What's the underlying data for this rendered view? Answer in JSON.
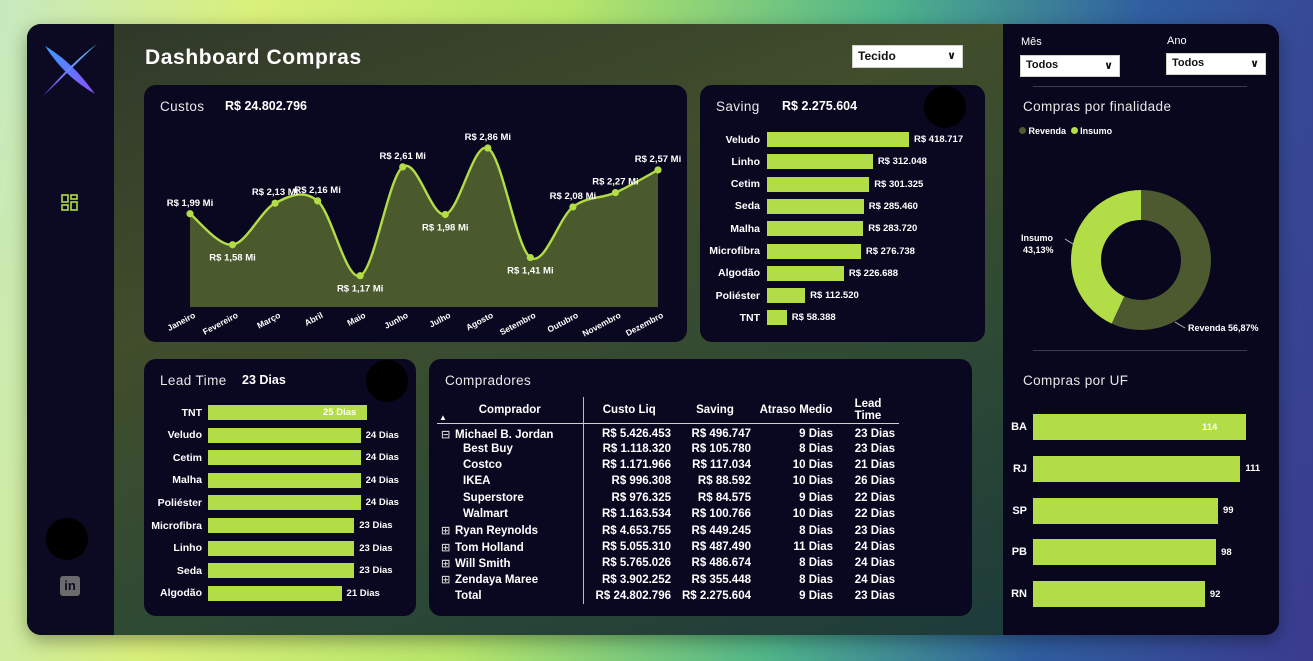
{
  "app": {
    "title": "Dashboard Compras"
  },
  "filters": {
    "tecido": "Tecido",
    "mes_label": "Mês",
    "mes_value": "Todos",
    "ano_label": "Ano",
    "ano_value": "Todos"
  },
  "custos": {
    "title": "Custos",
    "total": "R$ 24.802.796",
    "chart_data": {
      "type": "area",
      "categories": [
        "Janeiro",
        "Fevereiro",
        "Março",
        "Abril",
        "Maio",
        "Junho",
        "Julho",
        "Agosto",
        "Setembro",
        "Outubro",
        "Novembro",
        "Dezembro"
      ],
      "values": [
        1.99,
        1.58,
        2.13,
        2.16,
        1.17,
        2.61,
        1.98,
        2.86,
        1.41,
        2.08,
        2.27,
        2.57
      ],
      "labels": [
        "R$ 1,99 Mi",
        "R$ 1,58 Mi",
        "R$ 2,13 Mi",
        "R$ 2,16 Mi",
        "R$ 1,17 Mi",
        "R$ 2,61 Mi",
        "R$ 1,98 Mi",
        "R$ 2,86 Mi",
        "R$ 1,41 Mi",
        "R$ 2,08 Mi",
        "R$ 2,27 Mi",
        "R$ 2,57 Mi"
      ],
      "color": "#b3dd46"
    }
  },
  "saving": {
    "title": "Saving",
    "total": "R$ 2.275.604",
    "chart_data": {
      "type": "bar",
      "categories": [
        "Veludo",
        "Linho",
        "Cetim",
        "Seda",
        "Malha",
        "Microfibra",
        "Algodão",
        "Poliéster",
        "TNT"
      ],
      "values": [
        418717,
        312048,
        301325,
        285460,
        283720,
        276738,
        226688,
        112520,
        58388
      ],
      "labels": [
        "R$ 418.717",
        "R$ 312.048",
        "R$ 301.325",
        "R$ 285.460",
        "R$ 283.720",
        "R$ 276.738",
        "R$ 226.688",
        "R$ 112.520",
        "R$ 58.388"
      ]
    }
  },
  "leadtime": {
    "title": "Lead Time",
    "total": "23 Dias",
    "chart_data": {
      "type": "bar",
      "categories": [
        "TNT",
        "Veludo",
        "Cetim",
        "Malha",
        "Poliéster",
        "Microfibra",
        "Linho",
        "Seda",
        "Algodão"
      ],
      "values": [
        25,
        24,
        24,
        24,
        24,
        23,
        23,
        23,
        21
      ],
      "labels": [
        "25 Dias",
        "24 Dias",
        "24 Dias",
        "24 Dias",
        "24 Dias",
        "23 Dias",
        "23 Dias",
        "23 Dias",
        "21 Dias"
      ]
    }
  },
  "compradores": {
    "title": "Compradores",
    "headers": [
      "Comprador",
      "Custo Liq",
      "Saving",
      "Atraso Medio",
      "Lead Time"
    ],
    "rows": [
      {
        "expander": "⊟",
        "indent": false,
        "name": "Michael B. Jordan",
        "custo": "R$ 5.426.453",
        "saving": "R$ 496.747",
        "atraso": "9 Dias",
        "lead": "23 Dias"
      },
      {
        "expander": "",
        "indent": true,
        "name": "Best Buy",
        "custo": "R$ 1.118.320",
        "saving": "R$ 105.780",
        "atraso": "8 Dias",
        "lead": "23 Dias"
      },
      {
        "expander": "",
        "indent": true,
        "name": "Costco",
        "custo": "R$ 1.171.966",
        "saving": "R$ 117.034",
        "atraso": "10 Dias",
        "lead": "21 Dias"
      },
      {
        "expander": "",
        "indent": true,
        "name": "IKEA",
        "custo": "R$ 996.308",
        "saving": "R$ 88.592",
        "atraso": "10 Dias",
        "lead": "26 Dias"
      },
      {
        "expander": "",
        "indent": true,
        "name": "Superstore",
        "custo": "R$ 976.325",
        "saving": "R$ 84.575",
        "atraso": "9 Dias",
        "lead": "22 Dias"
      },
      {
        "expander": "",
        "indent": true,
        "name": "Walmart",
        "custo": "R$ 1.163.534",
        "saving": "R$ 100.766",
        "atraso": "10 Dias",
        "lead": "22 Dias"
      },
      {
        "expander": "⊞",
        "indent": false,
        "name": "Ryan Reynolds",
        "custo": "R$ 4.653.755",
        "saving": "R$ 449.245",
        "atraso": "8 Dias",
        "lead": "23 Dias"
      },
      {
        "expander": "⊞",
        "indent": false,
        "name": "Tom Holland",
        "custo": "R$ 5.055.310",
        "saving": "R$ 487.490",
        "atraso": "11 Dias",
        "lead": "24 Dias"
      },
      {
        "expander": "⊞",
        "indent": false,
        "name": "Will Smith",
        "custo": "R$ 5.765.026",
        "saving": "R$ 486.674",
        "atraso": "8 Dias",
        "lead": "24 Dias"
      },
      {
        "expander": "⊞",
        "indent": false,
        "name": "Zendaya Maree",
        "custo": "R$ 3.902.252",
        "saving": "R$ 355.448",
        "atraso": "8 Dias",
        "lead": "24 Dias"
      },
      {
        "expander": "",
        "indent": false,
        "name": "Total",
        "custo": "R$ 24.802.796",
        "saving": "R$ 2.275.604",
        "atraso": "9 Dias",
        "lead": "23 Dias"
      }
    ]
  },
  "finalidade": {
    "title": "Compras por finalidade",
    "legend": [
      "Revenda",
      "Insumo"
    ],
    "chart_data": {
      "type": "pie",
      "categories": [
        "Revenda",
        "Insumo"
      ],
      "values": [
        56.87,
        43.13
      ],
      "colors": [
        "#4d5a2f",
        "#b3dd46"
      ],
      "insumo_label": "Insumo",
      "insumo_pct": "43,13%",
      "revenda_label": "Revenda 56,87%"
    }
  },
  "uf": {
    "title": "Compras por UF",
    "chart_data": {
      "type": "bar",
      "categories": [
        "BA",
        "RJ",
        "SP",
        "PB",
        "RN"
      ],
      "values": [
        114,
        111,
        99,
        98,
        92
      ],
      "labels": [
        "114",
        "111",
        "99",
        "98",
        "92"
      ]
    }
  }
}
